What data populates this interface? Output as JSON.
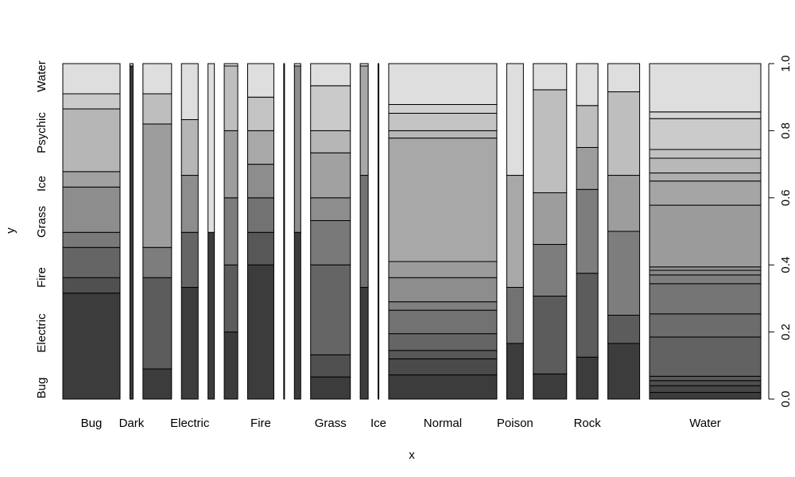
{
  "chart_data": {
    "type": "spineplot",
    "title": "",
    "xlabel": "x",
    "ylabel": "y",
    "x_tick_labels": [
      "Bug",
      "Dark",
      "Electric",
      "Fire",
      "Grass",
      "Ice",
      "Normal",
      "Poison",
      "Rock",
      "Water"
    ],
    "y_tick_labels": [
      "Bug",
      "Electric",
      "Fire",
      "Grass",
      "Ice",
      "Psychic",
      "Water"
    ],
    "right_axis": {
      "ticks": [
        0.0,
        0.2,
        0.4,
        0.6,
        0.8,
        1.0
      ],
      "labels": [
        "0.0",
        "0.2",
        "0.4",
        "0.6",
        "0.8",
        "1.0"
      ]
    },
    "colors": {
      "light": "#dedede",
      "dark": "#3c3c3c"
    },
    "columns": [
      {
        "label": "Bug",
        "show_label": true,
        "width": 72,
        "breaks": [
          0.316,
          0.362,
          0.452,
          0.497,
          0.632,
          0.678,
          0.865,
          0.91
        ]
      },
      {
        "label": "Dark",
        "show_label": true,
        "width": 4,
        "breaks": [
          0.993
        ]
      },
      {
        "label": "Electric",
        "show_label": false,
        "width": 36,
        "breaks": [
          0.09,
          0.362,
          0.452,
          0.82,
          0.91
        ]
      },
      {
        "label": "Electric",
        "show_label": true,
        "width": 21,
        "breaks": [
          0.333,
          0.497,
          0.667,
          0.833
        ]
      },
      {
        "label": "",
        "show_label": false,
        "width": 8,
        "breaks": [
          0.497
        ]
      },
      {
        "label": "",
        "show_label": false,
        "width": 17,
        "breaks": [
          0.2,
          0.4,
          0.6,
          0.8,
          0.993
        ]
      },
      {
        "label": "Fire",
        "show_label": true,
        "width": 33,
        "breaks": [
          0.4,
          0.497,
          0.6,
          0.7,
          0.8,
          0.9
        ]
      },
      {
        "label": "",
        "show_label": false,
        "width": 1,
        "breaks": []
      },
      {
        "label": "",
        "show_label": false,
        "width": 8,
        "breaks": [
          0.497,
          0.993
        ]
      },
      {
        "label": "Grass",
        "show_label": true,
        "width": 50,
        "breaks": [
          0.066,
          0.132,
          0.4,
          0.532,
          0.6,
          0.734,
          0.8,
          0.934
        ]
      },
      {
        "label": "",
        "show_label": false,
        "width": 10,
        "breaks": [
          0.333,
          0.667,
          0.993
        ]
      },
      {
        "label": "Ice",
        "show_label": true,
        "width": 1,
        "breaks": []
      },
      {
        "label": "Normal",
        "show_label": true,
        "width": 136,
        "breaks": [
          0.072,
          0.12,
          0.145,
          0.195,
          0.265,
          0.29,
          0.362,
          0.41,
          0.778,
          0.8,
          0.852,
          0.878
        ]
      },
      {
        "label": "Poison",
        "show_label": true,
        "width": 21,
        "breaks": [
          0.166,
          0.333,
          0.667
        ]
      },
      {
        "label": "",
        "show_label": false,
        "width": 42,
        "breaks": [
          0.075,
          0.307,
          0.461,
          0.615,
          0.922
        ]
      },
      {
        "label": "Rock",
        "show_label": true,
        "width": 27,
        "breaks": [
          0.125,
          0.375,
          0.625,
          0.75,
          0.875
        ]
      },
      {
        "label": "",
        "show_label": false,
        "width": 40,
        "breaks": [
          0.166,
          0.25,
          0.5,
          0.667,
          0.916
        ]
      },
      {
        "label": "Water",
        "show_label": true,
        "width": 140,
        "breaks": [
          0.02,
          0.04,
          0.055,
          0.068,
          0.185,
          0.254,
          0.344,
          0.37,
          0.384,
          0.394,
          0.578,
          0.65,
          0.674,
          0.718,
          0.744,
          0.836,
          0.856
        ]
      }
    ]
  }
}
